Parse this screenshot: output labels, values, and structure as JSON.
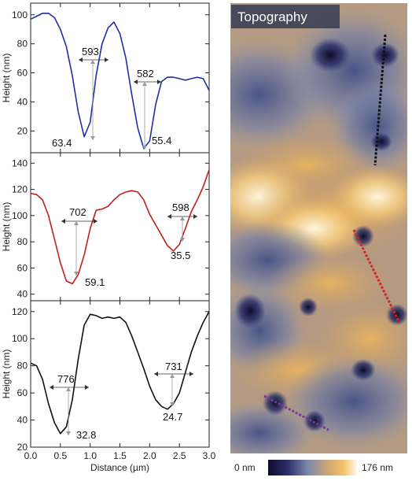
{
  "chart_data": [
    {
      "type": "line",
      "ylabel": "Height (nm)",
      "ylim": [
        5,
        108
      ],
      "yticks": [
        20,
        40,
        60,
        80,
        100
      ],
      "series": [
        {
          "color": "#1f2fa3",
          "x": [
            0,
            0.1,
            0.2,
            0.3,
            0.4,
            0.5,
            0.6,
            0.7,
            0.8,
            0.9,
            1.0,
            1.1,
            1.2,
            1.3,
            1.4,
            1.5,
            1.6,
            1.7,
            1.8,
            1.9,
            2.0,
            2.1,
            2.2,
            2.3,
            2.4,
            2.5,
            2.6,
            2.7,
            2.8,
            2.9,
            3.0
          ],
          "y": [
            97,
            99,
            101,
            101,
            98,
            90,
            78,
            58,
            33,
            16,
            26,
            58,
            80,
            91,
            95,
            87,
            70,
            45,
            22,
            8,
            13,
            38,
            54,
            57,
            57,
            56,
            55,
            56,
            57,
            56,
            48
          ]
        }
      ],
      "annotations": [
        {
          "text": "593",
          "role": "width"
        },
        {
          "text": "582",
          "role": "width"
        },
        {
          "text": "63.4",
          "role": "depth"
        },
        {
          "text": "55.4",
          "role": "depth"
        }
      ]
    },
    {
      "type": "line",
      "ylabel": "Height (nm)",
      "ylim": [
        35,
        148
      ],
      "yticks": [
        40,
        60,
        80,
        100,
        120,
        140
      ],
      "series": [
        {
          "color": "#c0201a",
          "x": [
            0,
            0.1,
            0.2,
            0.3,
            0.4,
            0.5,
            0.6,
            0.7,
            0.8,
            0.9,
            1.0,
            1.1,
            1.2,
            1.3,
            1.4,
            1.5,
            1.6,
            1.7,
            1.8,
            1.9,
            2.0,
            2.1,
            2.2,
            2.3,
            2.4,
            2.5,
            2.6,
            2.7,
            2.8,
            2.9,
            3.0
          ],
          "y": [
            117,
            116,
            112,
            100,
            82,
            64,
            50,
            48,
            55,
            70,
            90,
            104,
            105,
            107,
            112,
            116,
            118,
            119,
            118,
            112,
            101,
            93,
            85,
            77,
            73,
            78,
            90,
            103,
            112,
            122,
            135
          ]
        }
      ],
      "annotations": [
        {
          "text": "702",
          "role": "width"
        },
        {
          "text": "598",
          "role": "width"
        },
        {
          "text": "59.1",
          "role": "depth"
        },
        {
          "text": "35.5",
          "role": "depth"
        }
      ]
    },
    {
      "type": "line",
      "xlabel": "Distance (µm)",
      "ylabel": "Height (nm)",
      "xlim": [
        0,
        3.0
      ],
      "xticks": [
        "0.0",
        "0.5",
        "1.0",
        "1.5",
        "2.0",
        "2.5",
        "3.0"
      ],
      "ylim": [
        20,
        128
      ],
      "yticks": [
        20,
        40,
        60,
        80,
        100,
        120
      ],
      "series": [
        {
          "color": "#111111",
          "x": [
            0,
            0.1,
            0.2,
            0.3,
            0.4,
            0.5,
            0.6,
            0.7,
            0.8,
            0.9,
            1.0,
            1.1,
            1.2,
            1.3,
            1.4,
            1.5,
            1.6,
            1.7,
            1.8,
            1.9,
            2.0,
            2.1,
            2.2,
            2.3,
            2.4,
            2.5,
            2.6,
            2.7,
            2.8,
            2.9,
            3.0
          ],
          "y": [
            82,
            80,
            70,
            52,
            38,
            30,
            35,
            55,
            85,
            110,
            118,
            117,
            115,
            116,
            115,
            116,
            112,
            102,
            90,
            78,
            65,
            55,
            50,
            48,
            52,
            60,
            75,
            90,
            102,
            112,
            120
          ]
        }
      ],
      "annotations": [
        {
          "text": "776",
          "role": "width"
        },
        {
          "text": "731",
          "role": "width"
        },
        {
          "text": "32.8",
          "role": "depth"
        },
        {
          "text": "24.7",
          "role": "depth"
        }
      ]
    }
  ],
  "image": {
    "title": "Topography",
    "colorbar_min": "0 nm",
    "colorbar_max": "176 nm",
    "colormap": [
      "#0e0a2e",
      "#2b2f6a",
      "#6a7aa6",
      "#c9a276",
      "#f3c26a",
      "#fff8e8"
    ],
    "line_colors": [
      "#111111",
      "#d2222a",
      "#7a3a9c"
    ]
  }
}
